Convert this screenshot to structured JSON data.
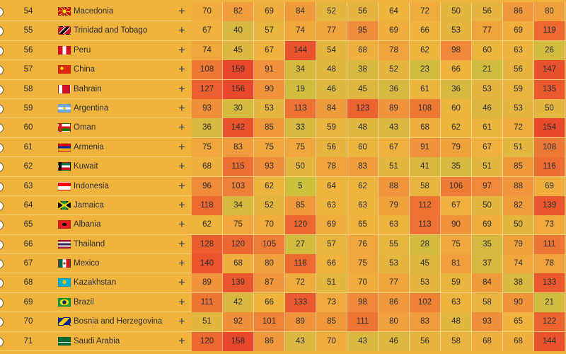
{
  "rows": [
    {
      "rank": "54",
      "country": "Macedonia",
      "flag": "macedonia-flag",
      "scores": [
        "70",
        "82",
        "69",
        "84",
        "52",
        "56",
        "64",
        "72",
        "50",
        "56",
        "86",
        "80"
      ]
    },
    {
      "rank": "55",
      "country": "Trinidad and Tobago",
      "flag": "trinidad-flag",
      "scores": [
        "67",
        "40",
        "57",
        "74",
        "77",
        "95",
        "69",
        "66",
        "53",
        "77",
        "69",
        "119"
      ]
    },
    {
      "rank": "56",
      "country": "Peru",
      "flag": "peru-flag",
      "scores": [
        "74",
        "45",
        "67",
        "144",
        "54",
        "68",
        "78",
        "62",
        "98",
        "60",
        "63",
        "26"
      ]
    },
    {
      "rank": "57",
      "country": "China",
      "flag": "china-flag",
      "scores": [
        "108",
        "159",
        "91",
        "34",
        "48",
        "38",
        "52",
        "23",
        "66",
        "21",
        "56",
        "147"
      ]
    },
    {
      "rank": "58",
      "country": "Bahrain",
      "flag": "bahrain-flag",
      "scores": [
        "127",
        "156",
        "90",
        "19",
        "46",
        "45",
        "36",
        "61",
        "36",
        "53",
        "59",
        "135"
      ]
    },
    {
      "rank": "59",
      "country": "Argentina",
      "flag": "argentina-flag",
      "scores": [
        "93",
        "30",
        "53",
        "113",
        "84",
        "123",
        "89",
        "108",
        "60",
        "46",
        "53",
        "50"
      ]
    },
    {
      "rank": "60",
      "country": "Oman",
      "flag": "oman-flag",
      "scores": [
        "36",
        "142",
        "85",
        "33",
        "59",
        "48",
        "43",
        "68",
        "62",
        "61",
        "72",
        "154"
      ]
    },
    {
      "rank": "61",
      "country": "Armenia",
      "flag": "armenia-flag",
      "scores": [
        "75",
        "83",
        "75",
        "75",
        "56",
        "60",
        "67",
        "91",
        "79",
        "67",
        "51",
        "108"
      ]
    },
    {
      "rank": "62",
      "country": "Kuwait",
      "flag": "kuwait-flag",
      "scores": [
        "68",
        "115",
        "93",
        "50",
        "78",
        "83",
        "51",
        "41",
        "35",
        "51",
        "85",
        "116"
      ]
    },
    {
      "rank": "63",
      "country": "Indonesia",
      "flag": "indonesia-flag",
      "scores": [
        "96",
        "103",
        "62",
        "5",
        "64",
        "62",
        "88",
        "58",
        "106",
        "97",
        "88",
        "69"
      ]
    },
    {
      "rank": "64",
      "country": "Jamaica",
      "flag": "jamaica-flag",
      "scores": [
        "118",
        "34",
        "52",
        "85",
        "63",
        "63",
        "79",
        "112",
        "67",
        "50",
        "82",
        "139"
      ]
    },
    {
      "rank": "65",
      "country": "Albania",
      "flag": "albania-flag",
      "scores": [
        "62",
        "75",
        "70",
        "120",
        "69",
        "65",
        "63",
        "113",
        "90",
        "69",
        "50",
        "73"
      ]
    },
    {
      "rank": "66",
      "country": "Thailand",
      "flag": "thailand-flag",
      "scores": [
        "128",
        "120",
        "105",
        "27",
        "57",
        "76",
        "55",
        "28",
        "75",
        "35",
        "79",
        "111"
      ]
    },
    {
      "rank": "67",
      "country": "Mexico",
      "flag": "mexico-flag",
      "scores": [
        "140",
        "68",
        "80",
        "118",
        "66",
        "75",
        "53",
        "45",
        "81",
        "37",
        "74",
        "78"
      ]
    },
    {
      "rank": "68",
      "country": "Kazakhstan",
      "flag": "kazakhstan-flag",
      "scores": [
        "89",
        "139",
        "87",
        "72",
        "51",
        "70",
        "77",
        "53",
        "59",
        "84",
        "38",
        "133"
      ]
    },
    {
      "rank": "69",
      "country": "Brazil",
      "flag": "brazil-flag",
      "scores": [
        "111",
        "42",
        "66",
        "133",
        "73",
        "98",
        "86",
        "102",
        "63",
        "58",
        "90",
        "21"
      ]
    },
    {
      "rank": "70",
      "country": "Bosnia and Herzegovina",
      "flag": "bosnia-flag",
      "scores": [
        "51",
        "92",
        "101",
        "89",
        "85",
        "111",
        "80",
        "83",
        "48",
        "93",
        "65",
        "122"
      ]
    },
    {
      "rank": "71",
      "country": "Saudi Arabia",
      "flag": "saudi-arabia-flag",
      "scores": [
        "120",
        "158",
        "86",
        "43",
        "70",
        "43",
        "46",
        "56",
        "58",
        "68",
        "68",
        "144"
      ]
    }
  ],
  "plus_label": "+",
  "colors": {
    "background": "#f0b43e",
    "heat_low": "#c8c23d",
    "heat_mid": "#f0b43e",
    "heat_high": "#ea4a2e"
  }
}
